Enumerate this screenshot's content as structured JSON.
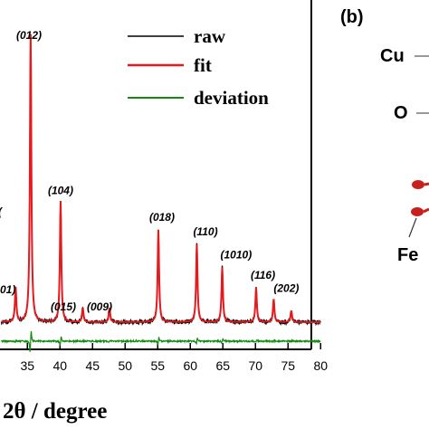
{
  "chart_data": {
    "type": "line",
    "xlabel": "2θ / degree",
    "xlim": [
      0,
      80
    ],
    "xticks": [
      35,
      40,
      45,
      50,
      55,
      60,
      65,
      70,
      75,
      80
    ],
    "xtick_labels_visible": [
      "35",
      "40",
      "45",
      "50",
      "55",
      "60",
      "65",
      "70",
      "75",
      "80"
    ],
    "series": [
      {
        "name": "raw",
        "color": "#000000"
      },
      {
        "name": "fit",
        "color": "#e8191d"
      },
      {
        "name": "deviation",
        "color": "#138a13"
      }
    ],
    "legend_position": "top-right",
    "peaks": [
      {
        "x": 35.5,
        "intensity": 1.0,
        "label": "(012)"
      },
      {
        "x": 33.2,
        "intensity": 0.12,
        "label": "01)"
      },
      {
        "x": 40.1,
        "intensity": 0.42,
        "label": "(104)"
      },
      {
        "x": 43.5,
        "intensity": 0.05,
        "label": "(015)"
      },
      {
        "x": 47.6,
        "intensity": 0.05,
        "label": "(009)"
      },
      {
        "x": 55.1,
        "intensity": 0.32,
        "label": "(018)"
      },
      {
        "x": 61.0,
        "intensity": 0.27,
        "label": "(110)"
      },
      {
        "x": 64.9,
        "intensity": 0.19,
        "label": "(1010)"
      },
      {
        "x": 70.1,
        "intensity": 0.12,
        "label": "(116)"
      },
      {
        "x": 72.8,
        "intensity": 0.08,
        "label": "(202)"
      },
      {
        "x": 75.5,
        "intensity": 0.04,
        "label": ""
      }
    ]
  },
  "panel_b": {
    "label": "(b)",
    "atoms": [
      "Cu",
      "O",
      "Fe"
    ],
    "colors": {
      "fe": "#d0201e"
    }
  }
}
